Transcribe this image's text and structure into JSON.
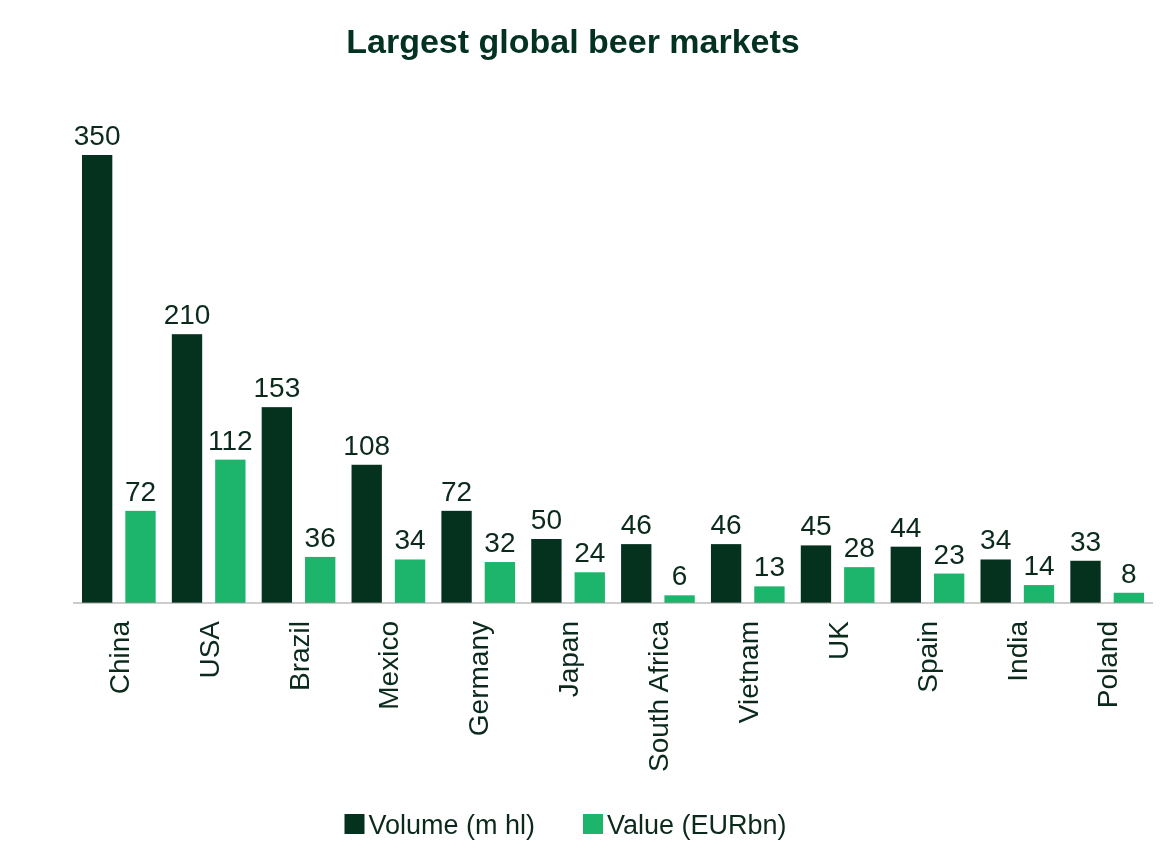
{
  "chart_data": {
    "type": "bar",
    "title": "Largest global beer markets",
    "categories": [
      "China",
      "USA",
      "Brazil",
      "Mexico",
      "Germany",
      "Japan",
      "South Africa",
      "Vietnam",
      "UK",
      "Spain",
      "India",
      "Poland"
    ],
    "series": [
      {
        "name": "Volume (m hl)",
        "color": "#05311f",
        "values": [
          350,
          210,
          153,
          108,
          72,
          50,
          46,
          46,
          45,
          44,
          34,
          33
        ]
      },
      {
        "name": "Value (EURbn)",
        "color": "#1db56c",
        "values": [
          72,
          112,
          36,
          34,
          32,
          24,
          6,
          13,
          28,
          23,
          14,
          8
        ]
      }
    ],
    "data_labels": true,
    "legend": "bottom",
    "grid": false
  }
}
